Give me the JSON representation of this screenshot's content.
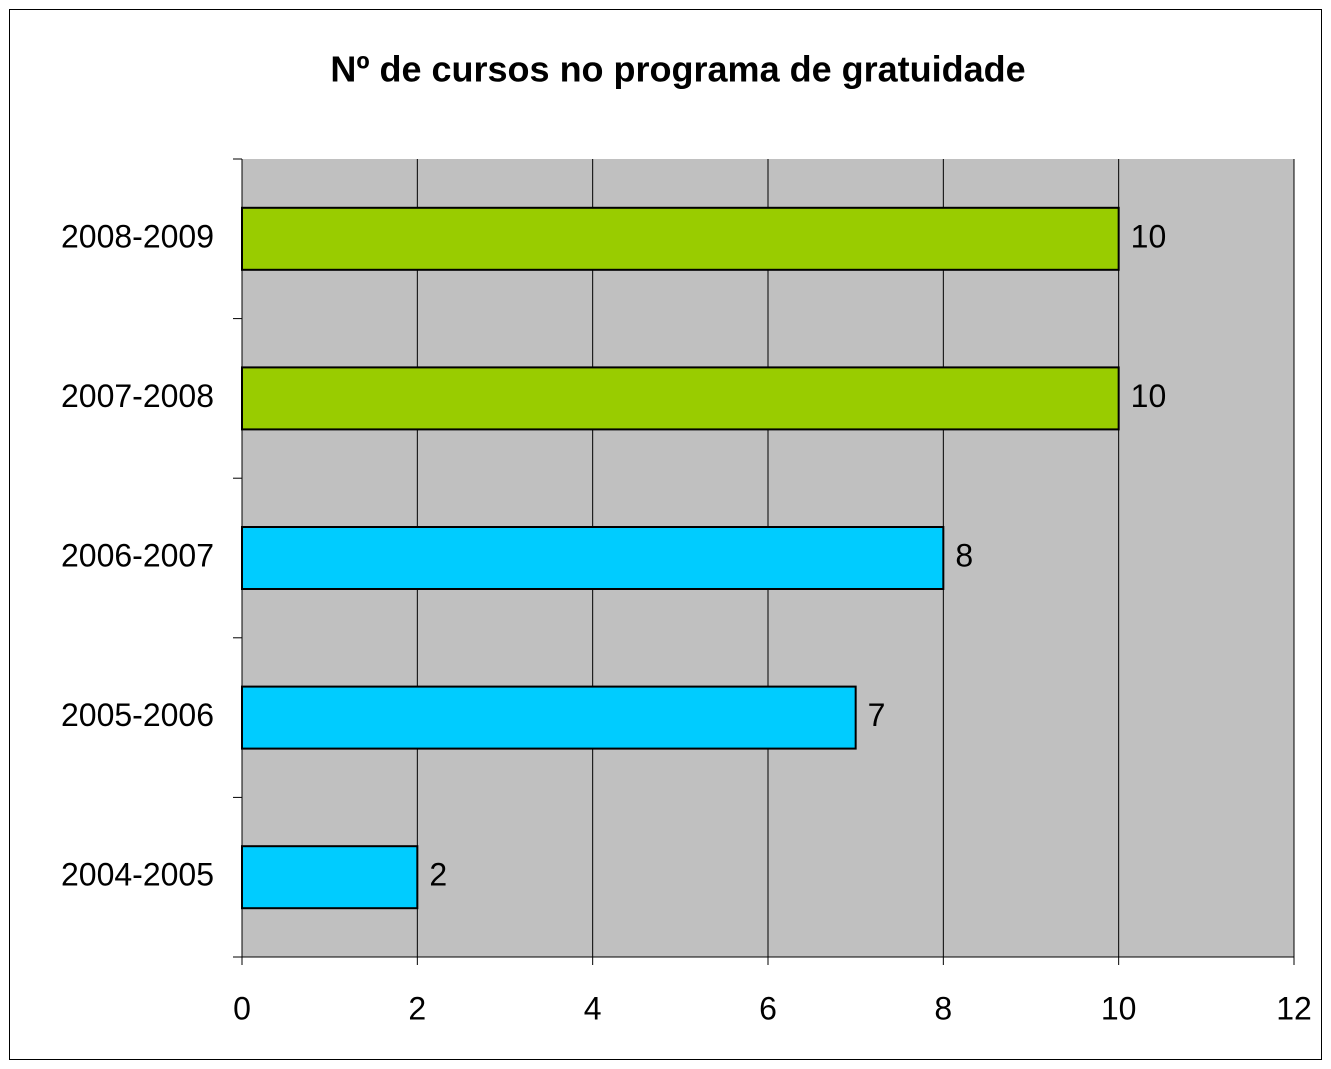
{
  "chart_data": {
    "type": "hbar",
    "title": "Nº de cursos no programa de gratuidade",
    "categories": [
      "2004-2005",
      "2005-2006",
      "2006-2007",
      "2007-2008",
      "2008-2009"
    ],
    "values": [
      2,
      7,
      8,
      10,
      10
    ],
    "colors": [
      "#00ccff",
      "#00ccff",
      "#00ccff",
      "#99cc00",
      "#99cc00"
    ],
    "xlim": [
      0,
      12
    ],
    "xticks": [
      0,
      2,
      4,
      6,
      8,
      10,
      12
    ],
    "grid": true,
    "background": "#c0c0c0"
  }
}
